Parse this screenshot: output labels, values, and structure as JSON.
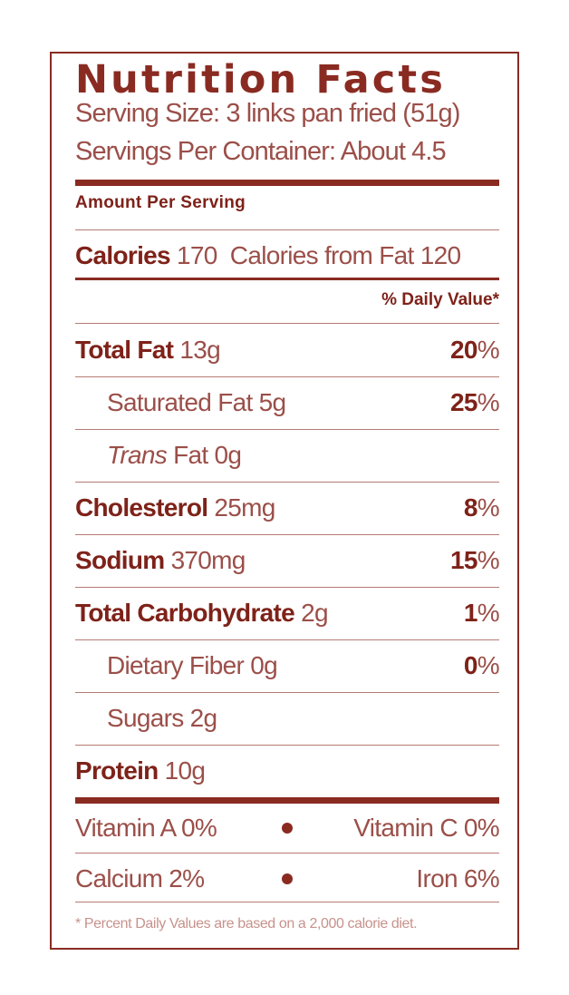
{
  "title": "Nutrition Facts",
  "serving_size": "Serving Size: 3 links pan fried (51g)",
  "servings_per_container": "Servings Per Container: About 4.5",
  "amount_per_serving": "Amount Per Serving",
  "calories": {
    "label": "Calories",
    "value": "170",
    "from_fat": "Calories from Fat 120"
  },
  "daily_value_header": "% Daily Value*",
  "nutrients": [
    {
      "label": "Total Fat",
      "amount": "13g",
      "dv": "20",
      "bold": true
    },
    {
      "label": "Saturated Fat",
      "amount": "5g",
      "dv": "25",
      "bold": false
    },
    {
      "label": "Trans",
      "label_rest": "Fat",
      "amount": "0g",
      "dv": "",
      "bold": false
    },
    {
      "label": "Cholesterol",
      "amount": "25mg",
      "dv": "8",
      "bold": true
    },
    {
      "label": "Sodium",
      "amount": "370mg",
      "dv": "15",
      "bold": true
    },
    {
      "label": "Total Carbohydrate",
      "amount": "2g",
      "dv": "1",
      "bold": true
    },
    {
      "label": "Dietary Fiber",
      "amount": "0g",
      "dv": "0",
      "bold": false
    },
    {
      "label": "Sugars",
      "amount": "2g",
      "dv": "",
      "bold": false
    },
    {
      "label": "Protein",
      "amount": "10g",
      "dv": "",
      "bold": true
    }
  ],
  "percent_sign": "%",
  "vitamins": [
    {
      "left": "Vitamin A 0%",
      "right": "Vitamin C 0%"
    },
    {
      "left": "Calcium 2%",
      "right": "Iron 6%"
    }
  ],
  "footnote": "* Percent Daily Values are based on a 2,000 calorie diet.",
  "colors": {
    "primary": "#8a2b22",
    "text_light": "#9b4f49",
    "rule_light": "#b77b75"
  }
}
